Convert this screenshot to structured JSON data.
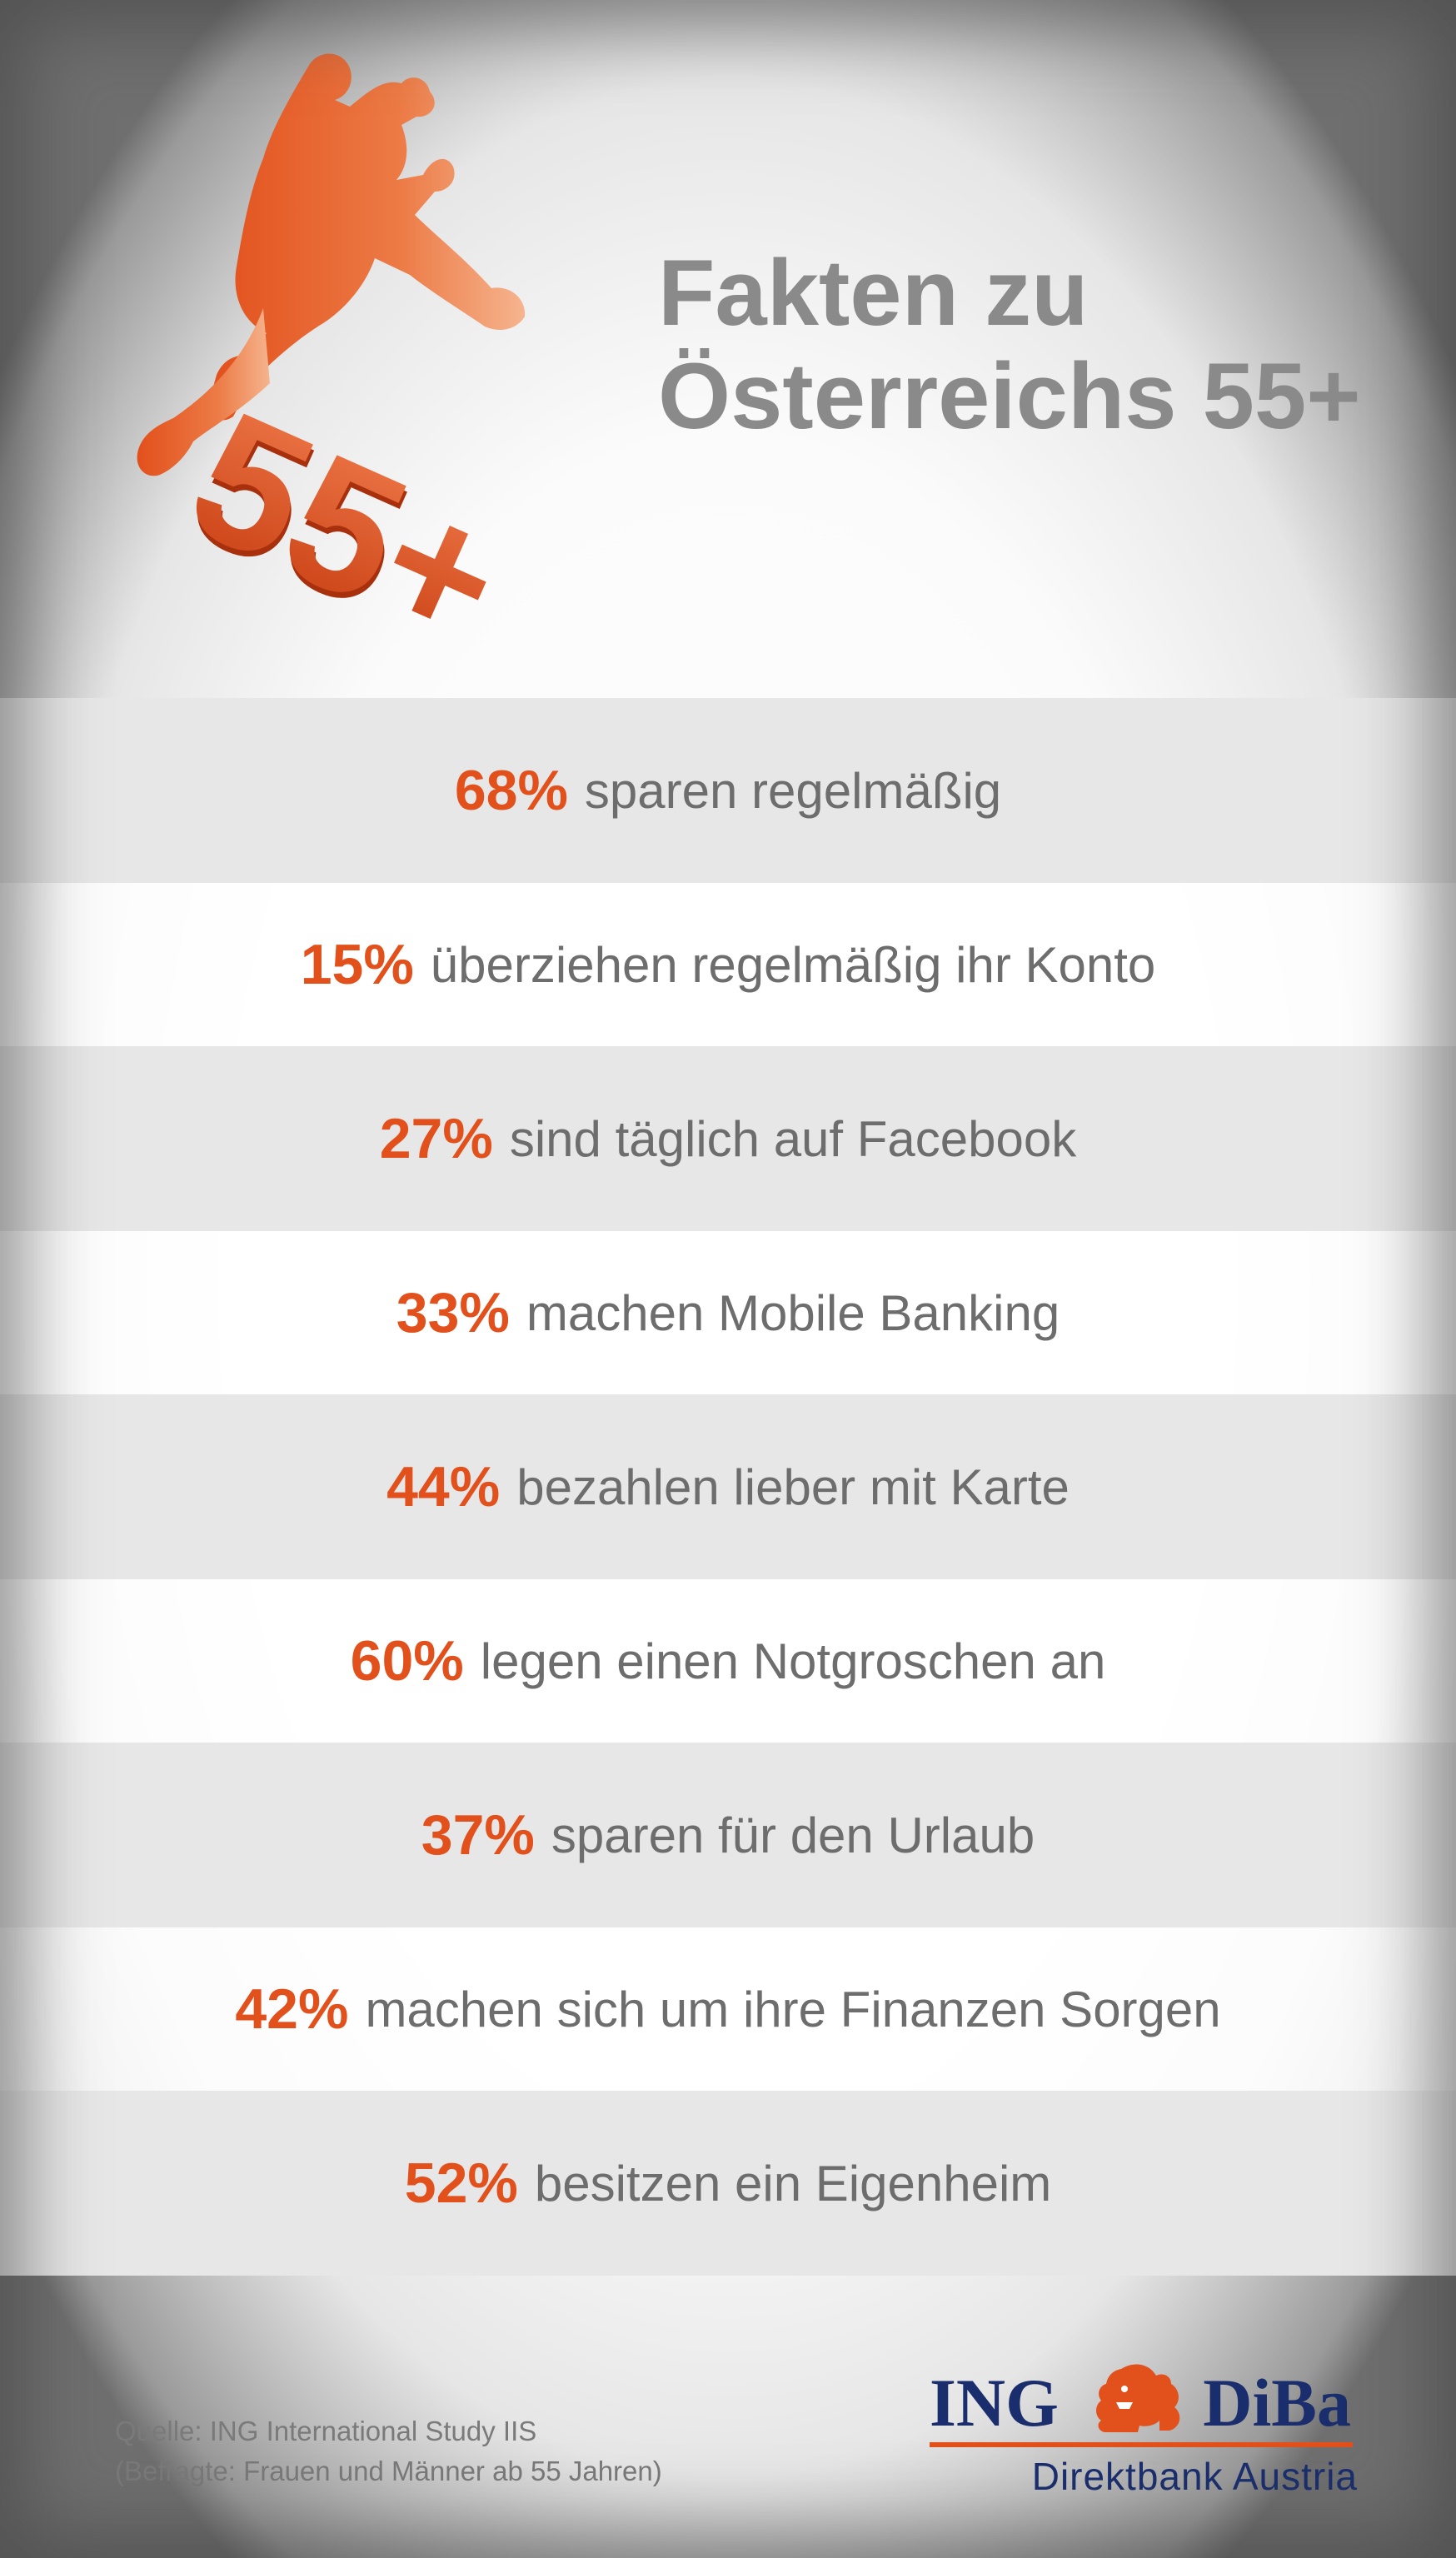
{
  "title": {
    "line1": "Fakten zu",
    "line2": "Österreichs 55+"
  },
  "hero": {
    "badge_text": "55+"
  },
  "facts": [
    {
      "percent": "68%",
      "text": "sparen regelmäßig"
    },
    {
      "percent": "15%",
      "text": "überziehen regelmäßig ihr Konto"
    },
    {
      "percent": "27%",
      "text": "sind täglich auf Facebook"
    },
    {
      "percent": "33%",
      "text": "machen Mobile Banking"
    },
    {
      "percent": "44%",
      "text": "bezahlen lieber mit Karte"
    },
    {
      "percent": "60%",
      "text": "legen einen Notgroschen an"
    },
    {
      "percent": "37%",
      "text": "sparen für den Urlaub"
    },
    {
      "percent": "42%",
      "text": "machen sich um ihre Finanzen Sorgen"
    },
    {
      "percent": "52%",
      "text": "besitzen ein Eigenheim"
    }
  ],
  "source": {
    "line1": "Quelle: ING International Study IIS",
    "line2": "(Befragte: Frauen und Männer ab 55 Jahren)"
  },
  "logo": {
    "left_word": "ING",
    "right_word": "DiBa",
    "subtitle": "Direktbank Austria"
  },
  "colors": {
    "accent": "#e2501c",
    "title_gray": "#8a8a8a",
    "text_gray": "#6d6d6d",
    "brand_blue": "#1a2e6e",
    "row_shade": "#e7e7e7"
  }
}
